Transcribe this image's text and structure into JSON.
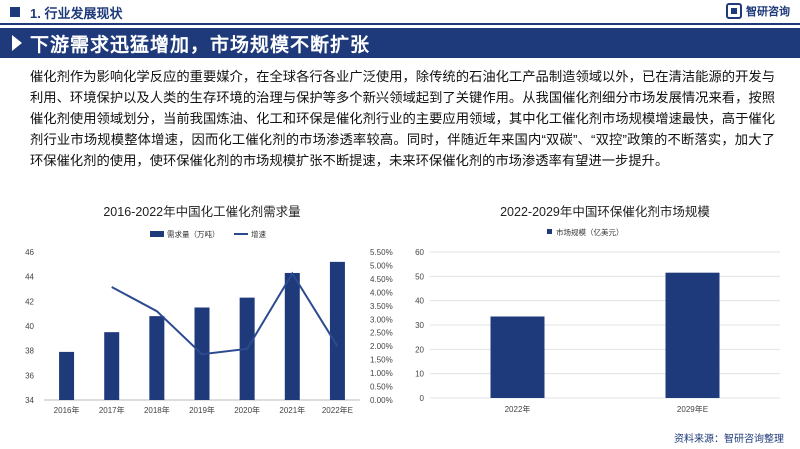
{
  "header": {
    "section_label": "1. 行业发展现状",
    "brand_name": "智研咨询"
  },
  "title": "下游需求迅猛增加，市场规模不断扩张",
  "body_text": "催化剂作为影响化学反应的重要媒介，在全球各行各业广泛使用，除传统的石油化工产品制造领域以外，已在清洁能源的开发与利用、环境保护以及人类的生存环境的治理与保护等多个新兴领域起到了关键作用。从我国催化剂细分市场发展情况来看，按照催化剂使用领域划分，当前我国炼油、化工和环保是催化剂行业的主要应用领域，其中化工催化剂市场规模增速最快，高于催化剂行业市场规模整体增速，因而化工催化剂的市场渗透率较高。同时，伴随近年来国内“双碳”、“双控”政策的不断落实，加大了环保催化剂的使用，使环保催化剂的市场规模扩张不断提速，未来环保催化剂的市场渗透率有望进一步提升。",
  "source": "资料来源：智研咨询整理",
  "colors": {
    "primary": "#1f3a7a",
    "bar": "#1f3a7a",
    "line": "#2b4a8f"
  },
  "chart_data": [
    {
      "type": "bar+line",
      "title": "2016-2022年中国化工催化剂需求量",
      "categories": [
        "2016年",
        "2017年",
        "2018年",
        "2019年",
        "2020年",
        "2021年",
        "2022年E"
      ],
      "series": [
        {
          "name": "需求量（万吨）",
          "type": "bar",
          "axis": "left",
          "values": [
            37.9,
            39.5,
            40.8,
            41.5,
            42.3,
            44.3,
            45.2
          ]
        },
        {
          "name": "增速",
          "type": "line",
          "axis": "right",
          "values": [
            null,
            4.2,
            3.3,
            1.7,
            1.9,
            4.7,
            2.0
          ]
        }
      ],
      "y_left": {
        "min": 34,
        "max": 46,
        "ticks": [
          "34",
          "36",
          "38",
          "40",
          "42",
          "44",
          "46"
        ]
      },
      "y_right": {
        "min": 0,
        "max": 5.5,
        "ticks": [
          "0.00%",
          "0.50%",
          "1.00%",
          "1.50%",
          "2.00%",
          "2.50%",
          "3.00%",
          "3.50%",
          "4.00%",
          "4.50%",
          "5.00%",
          "5.50%"
        ]
      },
      "legend_position": "top"
    },
    {
      "type": "bar",
      "title": "2022-2029年中国环保催化剂市场规模",
      "categories": [
        "2022年",
        "2029年E"
      ],
      "series": [
        {
          "name": "市场规模（亿美元）",
          "values": [
            33.5,
            51.5
          ]
        }
      ],
      "ylim": [
        0,
        60
      ],
      "y_ticks": [
        "0",
        "10",
        "20",
        "30",
        "40",
        "50",
        "60"
      ],
      "grid": true,
      "legend_position": "top"
    }
  ]
}
